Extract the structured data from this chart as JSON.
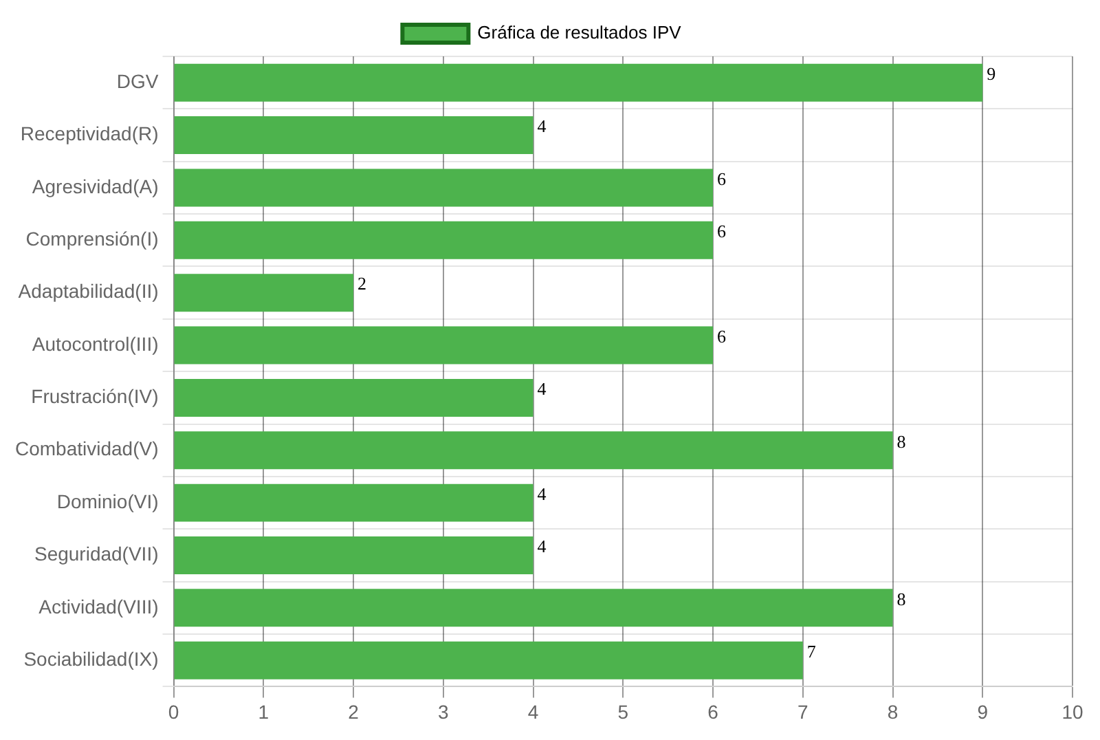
{
  "chart_data": {
    "type": "bar",
    "orientation": "horizontal",
    "categories": [
      "DGV",
      "Receptividad(R)",
      "Agresividad(A)",
      "Comprensión(I)",
      "Adaptabilidad(II)",
      "Autocontrol(III)",
      "Frustración(IV)",
      "Combatividad(V)",
      "Dominio(VI)",
      "Seguridad(VII)",
      "Actividad(VIII)",
      "Sociabilidad(IX)"
    ],
    "series": [
      {
        "name": "Gráfica de resultados IPV",
        "color": "#4db34d",
        "values": [
          9,
          4,
          6,
          6,
          2,
          6,
          4,
          8,
          4,
          4,
          8,
          7
        ]
      }
    ],
    "xlim": [
      0,
      10
    ],
    "xticks": [
      0,
      1,
      2,
      3,
      4,
      5,
      6,
      7,
      8,
      9,
      10
    ],
    "grid": true,
    "legend": "top",
    "data_labels": true
  }
}
